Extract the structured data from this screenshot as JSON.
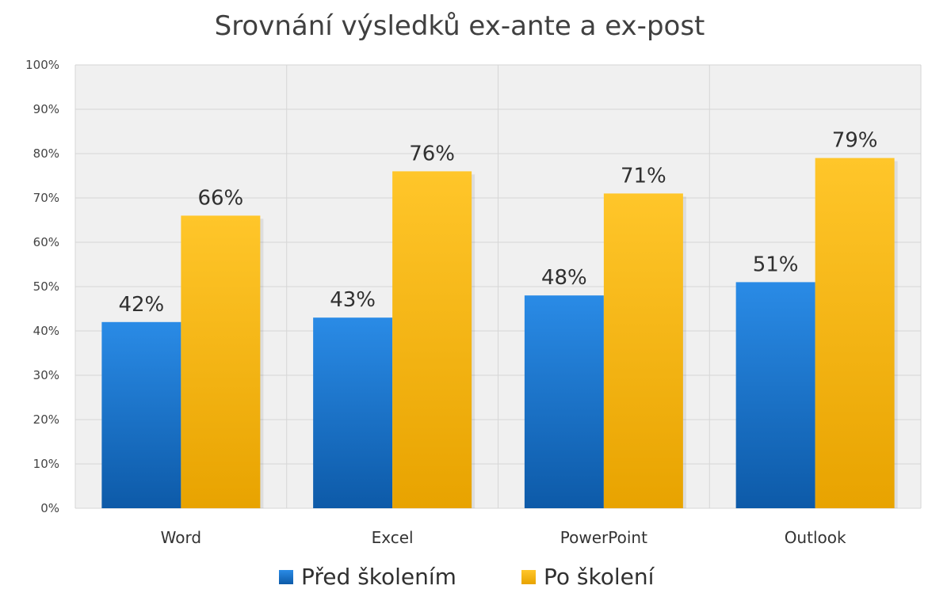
{
  "chart_data": {
    "type": "bar",
    "title": "Srovnání výsledků ex-ante a ex-post",
    "categories": [
      "Word",
      "Excel",
      "PowerPoint",
      "Outlook"
    ],
    "series": [
      {
        "name": "Před školením",
        "values": [
          42,
          43,
          48,
          51
        ],
        "labels": [
          "42%",
          "43%",
          "48%",
          "51%"
        ],
        "color": "#1a72c9"
      },
      {
        "name": "Po školení",
        "values": [
          66,
          76,
          71,
          79
        ],
        "labels": [
          "66%",
          "76%",
          "71%",
          "79%"
        ],
        "color": "#f2b400"
      }
    ],
    "ylim": [
      0,
      100
    ],
    "yticks": [
      "0%",
      "10%",
      "20%",
      "30%",
      "40%",
      "50%",
      "60%",
      "70%",
      "80%",
      "90%",
      "100%"
    ],
    "grid": true,
    "legend_position": "bottom",
    "plot_background": "#f0f0f0"
  }
}
